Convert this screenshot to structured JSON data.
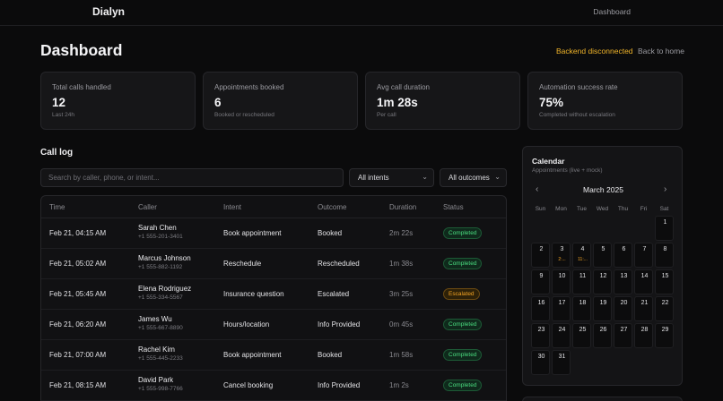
{
  "header": {
    "brand": "Dialyn",
    "nav_link": "Dashboard"
  },
  "page": {
    "title": "Dashboard",
    "backend_status": "Backend disconnected",
    "back_link": "Back to home"
  },
  "colors": {
    "warning": "#f0b429",
    "success": "#4ade80",
    "background": "#0b0b0c"
  },
  "stats": [
    {
      "label": "Total calls handled",
      "value": "12",
      "sub": "Last 24h"
    },
    {
      "label": "Appointments booked",
      "value": "6",
      "sub": "Booked or rescheduled"
    },
    {
      "label": "Avg call duration",
      "value": "1m 28s",
      "sub": "Per call"
    },
    {
      "label": "Automation success rate",
      "value": "75%",
      "sub": "Completed without escalation"
    }
  ],
  "call_log": {
    "title": "Call log",
    "search_placeholder": "Search by caller, phone, or intent...",
    "intent_filter": "All intents",
    "outcome_filter": "All outcomes",
    "columns": [
      "Time",
      "Caller",
      "Intent",
      "Outcome",
      "Duration",
      "Status"
    ],
    "rows": [
      {
        "time": "Feb 21, 04:15 AM",
        "name": "Sarah Chen",
        "phone": "+1 555-201-3401",
        "intent": "Book appointment",
        "outcome": "Booked",
        "duration": "2m 22s",
        "status": "Completed"
      },
      {
        "time": "Feb 21, 05:02 AM",
        "name": "Marcus Johnson",
        "phone": "+1 555-882-1192",
        "intent": "Reschedule",
        "outcome": "Rescheduled",
        "duration": "1m 38s",
        "status": "Completed"
      },
      {
        "time": "Feb 21, 05:45 AM",
        "name": "Elena Rodriguez",
        "phone": "+1 555-334-5567",
        "intent": "Insurance question",
        "outcome": "Escalated",
        "duration": "3m 25s",
        "status": "Escalated"
      },
      {
        "time": "Feb 21, 06:20 AM",
        "name": "James Wu",
        "phone": "+1 555-667-8890",
        "intent": "Hours/location",
        "outcome": "Info Provided",
        "duration": "0m 45s",
        "status": "Completed"
      },
      {
        "time": "Feb 21, 07:00 AM",
        "name": "Rachel Kim",
        "phone": "+1 555-445-2233",
        "intent": "Book appointment",
        "outcome": "Booked",
        "duration": "1m 58s",
        "status": "Completed"
      },
      {
        "time": "Feb 21, 08:15 AM",
        "name": "David Park",
        "phone": "+1 555-998-7766",
        "intent": "Cancel booking",
        "outcome": "Info Provided",
        "duration": "1m 2s",
        "status": "Completed"
      }
    ]
  },
  "calendar": {
    "title": "Calendar",
    "subtitle": "Appointments (live + mock)",
    "month": "March 2025",
    "prev_icon": "chevron-left-icon",
    "next_icon": "chevron-right-icon",
    "weekdays": [
      "Sun",
      "Mon",
      "Tue",
      "Wed",
      "Thu",
      "Fri",
      "Sat"
    ],
    "days": [
      {
        "num": "1",
        "appt": ""
      },
      {
        "num": "2",
        "appt": ""
      },
      {
        "num": "3",
        "appt": "2:..."
      },
      {
        "num": "4",
        "appt": "11:..."
      },
      {
        "num": "5",
        "appt": ""
      },
      {
        "num": "6",
        "appt": ""
      },
      {
        "num": "7",
        "appt": ""
      },
      {
        "num": "8",
        "appt": ""
      },
      {
        "num": "9",
        "appt": ""
      },
      {
        "num": "10",
        "appt": ""
      },
      {
        "num": "11",
        "appt": ""
      },
      {
        "num": "12",
        "appt": ""
      },
      {
        "num": "13",
        "appt": ""
      },
      {
        "num": "14",
        "appt": ""
      },
      {
        "num": "15",
        "appt": ""
      },
      {
        "num": "16",
        "appt": ""
      },
      {
        "num": "17",
        "appt": ""
      },
      {
        "num": "18",
        "appt": ""
      },
      {
        "num": "19",
        "appt": ""
      },
      {
        "num": "20",
        "appt": ""
      },
      {
        "num": "21",
        "appt": ""
      },
      {
        "num": "22",
        "appt": ""
      },
      {
        "num": "23",
        "appt": ""
      },
      {
        "num": "24",
        "appt": ""
      },
      {
        "num": "25",
        "appt": ""
      },
      {
        "num": "26",
        "appt": ""
      },
      {
        "num": "27",
        "appt": ""
      },
      {
        "num": "28",
        "appt": ""
      },
      {
        "num": "29",
        "appt": ""
      },
      {
        "num": "30",
        "appt": ""
      },
      {
        "num": "31",
        "appt": ""
      }
    ]
  }
}
